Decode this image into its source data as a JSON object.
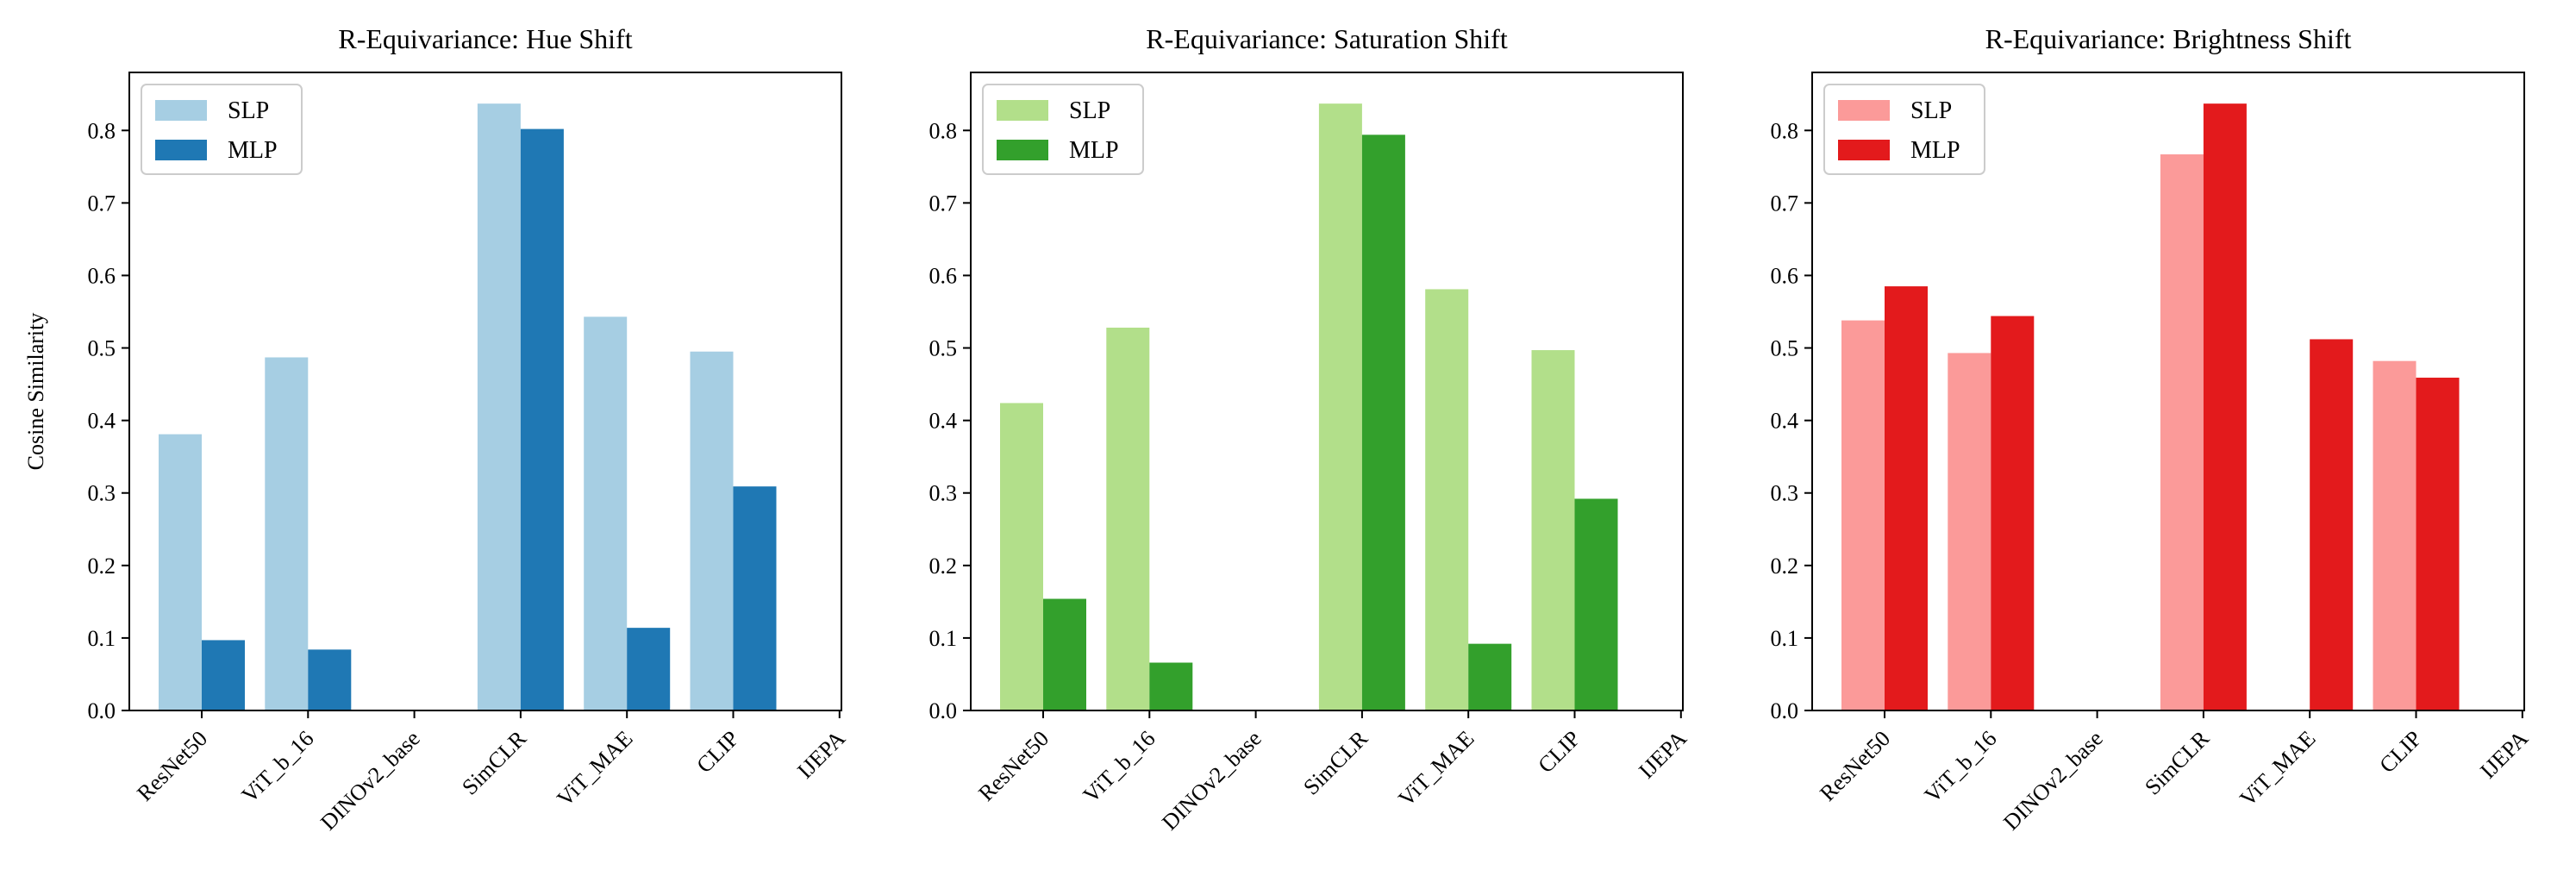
{
  "chart_data": [
    {
      "type": "bar",
      "title": "R-Equivariance: Hue Shift",
      "ylabel": "Cosine Similarity",
      "ylim": [
        0,
        0.88
      ],
      "yticks": [
        "0.0",
        "0.1",
        "0.2",
        "0.3",
        "0.4",
        "0.5",
        "0.6",
        "0.7",
        "0.8"
      ],
      "categories": [
        "ResNet50",
        "ViT_b_16",
        "DINOv2_base",
        "SimCLR",
        "ViT_MAE",
        "CLIP",
        "IJEPA"
      ],
      "legend_position": "top-left",
      "series": [
        {
          "name": "SLP",
          "color": "#a6cee3",
          "values": [
            0.381,
            0.487,
            null,
            0.837,
            0.543,
            0.495,
            null
          ]
        },
        {
          "name": "MLP",
          "color": "#1f78b4",
          "values": [
            0.097,
            0.084,
            null,
            0.802,
            0.114,
            0.309,
            null
          ]
        }
      ]
    },
    {
      "type": "bar",
      "title": "R-Equivariance: Saturation Shift",
      "ylabel": "",
      "ylim": [
        0,
        0.88
      ],
      "yticks": [
        "0.0",
        "0.1",
        "0.2",
        "0.3",
        "0.4",
        "0.5",
        "0.6",
        "0.7",
        "0.8"
      ],
      "categories": [
        "ResNet50",
        "ViT_b_16",
        "DINOv2_base",
        "SimCLR",
        "ViT_MAE",
        "CLIP",
        "IJEPA"
      ],
      "legend_position": "top-left",
      "series": [
        {
          "name": "SLP",
          "color": "#b2df8a",
          "values": [
            0.424,
            0.528,
            null,
            0.837,
            0.581,
            0.497,
            null
          ]
        },
        {
          "name": "MLP",
          "color": "#33a02c",
          "values": [
            0.154,
            0.066,
            null,
            0.794,
            0.092,
            0.292,
            null
          ]
        }
      ]
    },
    {
      "type": "bar",
      "title": "R-Equivariance: Brightness Shift",
      "ylabel": "",
      "ylim": [
        0,
        0.88
      ],
      "yticks": [
        "0.0",
        "0.1",
        "0.2",
        "0.3",
        "0.4",
        "0.5",
        "0.6",
        "0.7",
        "0.8"
      ],
      "categories": [
        "ResNet50",
        "ViT_b_16",
        "DINOv2_base",
        "SimCLR",
        "ViT_MAE",
        "CLIP",
        "IJEPA"
      ],
      "legend_position": "top-left",
      "series": [
        {
          "name": "SLP",
          "color": "#fb9a99",
          "values": [
            0.538,
            0.493,
            null,
            0.767,
            null,
            0.482,
            null
          ]
        },
        {
          "name": "MLP",
          "color": "#e31a1c",
          "values": [
            0.585,
            0.544,
            null,
            0.837,
            0.512,
            0.459,
            null
          ]
        }
      ]
    }
  ]
}
